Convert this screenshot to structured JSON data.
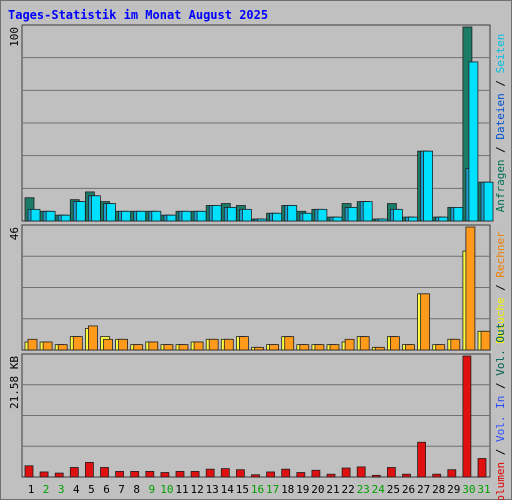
{
  "chart_data": {
    "type": "bar",
    "title": "Tages-Statistik im Monat August 2025",
    "days": [
      "1",
      "2",
      "3",
      "4",
      "5",
      "6",
      "7",
      "8",
      "9",
      "10",
      "11",
      "12",
      "13",
      "14",
      "15",
      "16",
      "17",
      "18",
      "19",
      "20",
      "21",
      "22",
      "23",
      "24",
      "25",
      "26",
      "27",
      "28",
      "29",
      "30",
      "31"
    ],
    "weekend_days": [
      2,
      3,
      9,
      10,
      16,
      17,
      23,
      24,
      30,
      31
    ],
    "colors": {
      "weekday": "#000000",
      "weekend": "#00a000"
    },
    "panels": [
      {
        "id": "requests",
        "ymax_label": "100",
        "ymax": 100,
        "legend": [
          {
            "text": "Anfragen",
            "color": "#007050"
          },
          {
            "text": " / ",
            "color": "#000000"
          },
          {
            "text": "Dateien",
            "color": "#0050d0"
          },
          {
            "text": " / ",
            "color": "#000000"
          },
          {
            "text": "Seiten",
            "color": "#00c0e0"
          }
        ],
        "series": [
          {
            "name": "Anfragen",
            "fill": "#1c7b66",
            "values": [
              12,
              5,
              3,
              11,
              15,
              10,
              5,
              5,
              5,
              3,
              5,
              5,
              8,
              9,
              8,
              1,
              4,
              8,
              5,
              6,
              2,
              9,
              10,
              1,
              9,
              2,
              36,
              2,
              7,
              100,
              20
            ]
          },
          {
            "name": "Dateien",
            "fill": "#1aa0d0",
            "values": [
              6,
              5,
              3,
              10,
              13,
              9,
              5,
              5,
              5,
              3,
              5,
              5,
              8,
              7,
              6,
              1,
              4,
              8,
              4,
              6,
              2,
              7,
              10,
              1,
              6,
              2,
              36,
              2,
              7,
              27,
              20
            ]
          },
          {
            "name": "Seiten",
            "fill": "#00e0ff",
            "values": [
              6,
              5,
              3,
              10,
              13,
              9,
              5,
              5,
              5,
              3,
              5,
              5,
              8,
              7,
              6,
              1,
              4,
              8,
              4,
              6,
              2,
              7,
              10,
              1,
              6,
              2,
              36,
              2,
              7,
              82,
              20
            ]
          }
        ]
      },
      {
        "id": "visits",
        "ymax_label": "46",
        "ymax": 46,
        "legend": [
          {
            "text": "Besuche",
            "color": "#f0f000"
          },
          {
            "text": " / ",
            "color": "#000000"
          },
          {
            "text": "Rechner",
            "color": "#f08000"
          }
        ],
        "series": [
          {
            "name": "Besuche",
            "fill": "#ffff40",
            "values": [
              3,
              3,
              2,
              5,
              8,
              5,
              4,
              2,
              3,
              2,
              2,
              3,
              4,
              4,
              5,
              1,
              2,
              5,
              2,
              2,
              2,
              3,
              5,
              1,
              5,
              2,
              21,
              2,
              4,
              37,
              7
            ]
          },
          {
            "name": "Rechner",
            "fill": "#ff9a1a",
            "values": [
              4,
              3,
              2,
              5,
              9,
              4,
              4,
              2,
              3,
              2,
              2,
              3,
              4,
              4,
              5,
              1,
              2,
              5,
              2,
              2,
              2,
              4,
              5,
              1,
              5,
              2,
              21,
              2,
              4,
              46,
              7
            ]
          }
        ]
      },
      {
        "id": "volume",
        "ymax_label": "21.58 KB",
        "ymax": 21.58,
        "legend": [
          {
            "text": "Volumen",
            "color": "#e00000"
          },
          {
            "text": " / ",
            "color": "#000000"
          },
          {
            "text": "Vol. In",
            "color": "#2a4cff"
          },
          {
            "text": " / ",
            "color": "#000000"
          },
          {
            "text": "Vol. Out",
            "color": "#006050"
          }
        ],
        "series": [
          {
            "name": "Volumen",
            "fill": "#e01010",
            "values": [
              2.0,
              0.9,
              0.7,
              1.7,
              2.6,
              1.7,
              1.0,
              1.0,
              1.0,
              0.8,
              1.0,
              1.0,
              1.4,
              1.5,
              1.3,
              0.4,
              0.9,
              1.4,
              0.8,
              1.2,
              0.5,
              1.6,
              1.8,
              0.3,
              1.7,
              0.5,
              6.2,
              0.5,
              1.3,
              21.58,
              3.3
            ]
          }
        ]
      }
    ]
  }
}
